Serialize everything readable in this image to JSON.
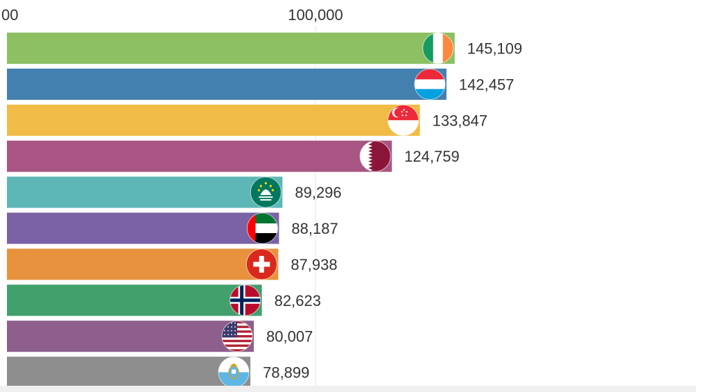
{
  "chart_data": {
    "type": "bar",
    "orientation": "horizontal",
    "categories": [
      "Ireland",
      "Luxembourg",
      "Singapore",
      "Qatar",
      "Macao",
      "United Arab Emirates",
      "Switzerland",
      "Norway",
      "United States",
      "San Marino"
    ],
    "values": [
      145109,
      142457,
      133847,
      124759,
      89296,
      88187,
      87938,
      82623,
      80007,
      78899
    ],
    "value_labels": [
      "145,109",
      "142,457",
      "133,847",
      "124,759",
      "89,296",
      "88,187",
      "87,938",
      "82,623",
      "80,007",
      "78,899"
    ],
    "bar_colors": [
      "#8cc063",
      "#4280b0",
      "#f0bc45",
      "#a85583",
      "#5cb7b6",
      "#7b61a6",
      "#e8923d",
      "#42a06c",
      "#8e5f8c",
      "#8e8e8e"
    ],
    "flag_icons": [
      "ireland-flag-icon",
      "luxembourg-flag-icon",
      "singapore-flag-icon",
      "qatar-flag-icon",
      "macao-flag-icon",
      "uae-flag-icon",
      "switzerland-flag-icon",
      "norway-flag-icon",
      "usa-flag-icon",
      "san-marino-flag-icon"
    ],
    "x_ticks": [
      0,
      100000
    ],
    "x_tick_labels": [
      "00",
      "100,000"
    ],
    "xlim": [
      0,
      160000
    ],
    "title": "",
    "xlabel": "",
    "ylabel": "",
    "grid": true,
    "legend": "none"
  }
}
